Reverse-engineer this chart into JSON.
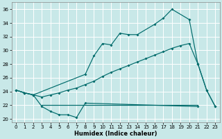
{
  "xlabel": "Humidex (Indice chaleur)",
  "background_color": "#c8e8e8",
  "grid_color": "#ffffff",
  "line_color": "#006b6b",
  "xlim": [
    -0.5,
    23.5
  ],
  "ylim": [
    19.5,
    37
  ],
  "xticks": [
    0,
    1,
    2,
    3,
    4,
    5,
    6,
    7,
    8,
    9,
    10,
    11,
    12,
    13,
    14,
    15,
    16,
    17,
    18,
    19,
    20,
    21,
    22,
    23
  ],
  "yticks": [
    20,
    22,
    24,
    26,
    28,
    30,
    32,
    34,
    36
  ],
  "series_lower": {
    "x": [
      0,
      1,
      2,
      3,
      4,
      5,
      6,
      7,
      8,
      21
    ],
    "y": [
      24.2,
      23.8,
      23.5,
      21.8,
      21.1,
      20.6,
      20.6,
      20.2,
      22.3,
      21.8
    ]
  },
  "series_hline": {
    "x": [
      3,
      21
    ],
    "y": [
      22.0,
      22.0
    ]
  },
  "series_upper": {
    "x": [
      0,
      1,
      2,
      8,
      9,
      10,
      11,
      12,
      13,
      14,
      16,
      17,
      18,
      20,
      21,
      22,
      23
    ],
    "y": [
      24.2,
      23.8,
      23.5,
      26.5,
      29.2,
      31.0,
      30.8,
      32.5,
      32.3,
      32.3,
      33.8,
      34.7,
      36.0,
      34.5,
      28.0,
      24.2,
      21.8
    ]
  },
  "series_mid": {
    "x": [
      0,
      1,
      2,
      3,
      4,
      5,
      6,
      7,
      8,
      9,
      10,
      11,
      12,
      13,
      14,
      15,
      16,
      17,
      18,
      19,
      20,
      21,
      22,
      23
    ],
    "y": [
      24.2,
      23.8,
      23.5,
      23.2,
      23.5,
      23.8,
      24.2,
      24.5,
      25.0,
      25.5,
      26.2,
      26.8,
      27.3,
      27.8,
      28.3,
      28.8,
      29.3,
      29.8,
      30.3,
      30.7,
      31.0,
      28.0,
      24.2,
      21.8
    ]
  }
}
